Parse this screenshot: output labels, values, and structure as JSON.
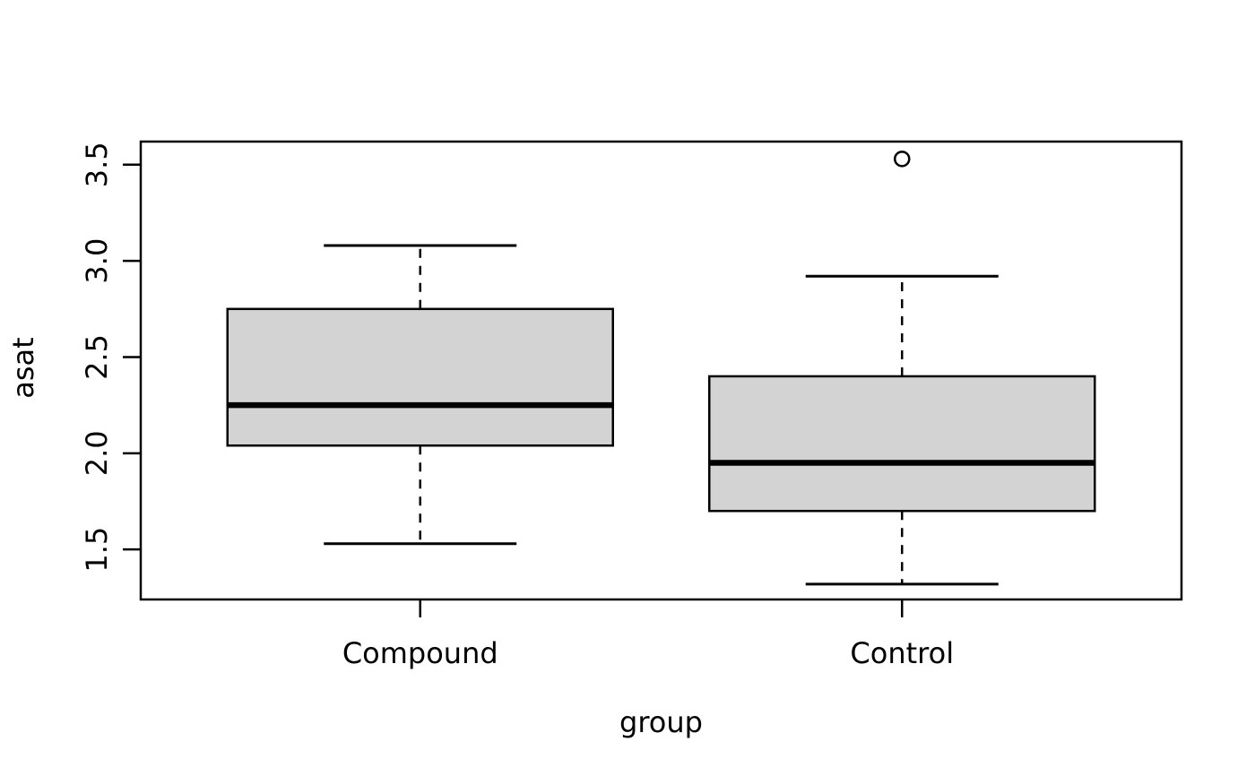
{
  "figure": {
    "background": "#ffffff"
  },
  "chart_data": {
    "type": "boxplot",
    "title": "",
    "xlabel": "group",
    "ylabel": "asat",
    "categories": [
      "Compound",
      "Control"
    ],
    "ytick_labels": [
      "1.5",
      "2.0",
      "2.5",
      "3.0",
      "3.5"
    ],
    "yticks": [
      1.5,
      2.0,
      2.5,
      3.0,
      3.5
    ],
    "ylim": [
      1.24,
      3.62
    ],
    "xlim": [
      0.42,
      2.58
    ],
    "grid": false,
    "legend": "none",
    "box_fill": "#d3d3d3",
    "line_color": "#000000",
    "box_width_units": 0.8,
    "cap_width_units": 0.4,
    "outlier_marker": "open-circle",
    "series": [
      {
        "name": "Compound",
        "x": 1,
        "whisker_low": 1.53,
        "q1": 2.04,
        "median": 2.25,
        "q3": 2.75,
        "whisker_high": 3.08,
        "outliers": []
      },
      {
        "name": "Control",
        "x": 2,
        "whisker_low": 1.32,
        "q1": 1.7,
        "median": 1.95,
        "q3": 2.4,
        "whisker_high": 2.92,
        "outliers": [
          3.53
        ]
      }
    ]
  }
}
